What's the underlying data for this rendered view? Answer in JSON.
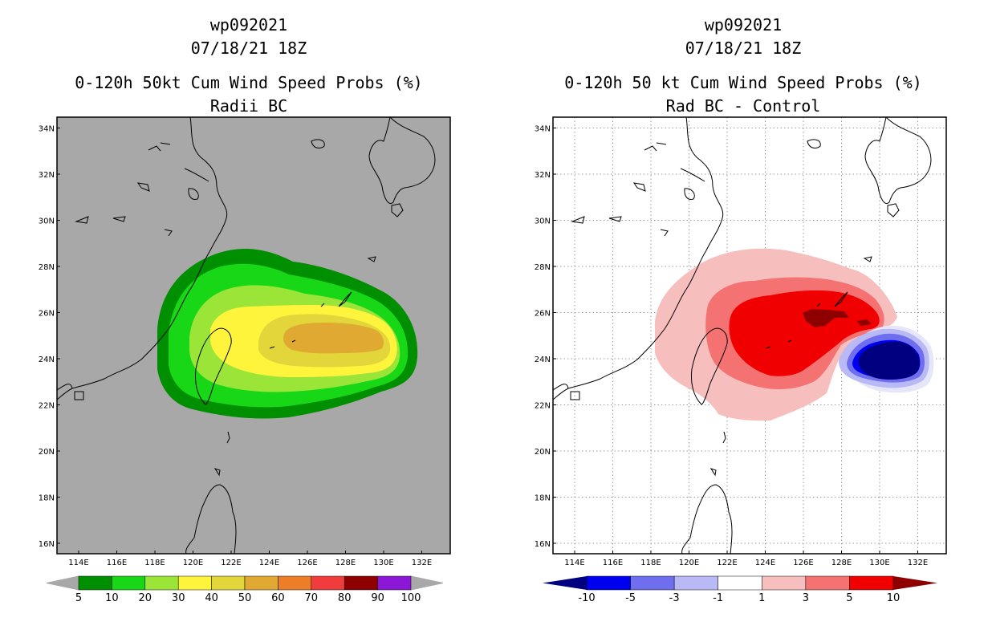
{
  "panels": [
    {
      "id": "left",
      "title_line1": "wp092021",
      "title_line2": "07/18/21 18Z",
      "title_line3": "0-120h 50kt Cum Wind Speed Probs (%)",
      "title_line4": "Radii BC",
      "background": "#a8a8a8",
      "grid": false,
      "colorbar": {
        "colors": [
          "#008f00",
          "#17d717",
          "#9be539",
          "#fff43c",
          "#e2d63a",
          "#e0aa32",
          "#ee7d28",
          "#f03c3c",
          "#8e0000",
          "#8c17d7"
        ],
        "labels": [
          "5",
          "10",
          "20",
          "30",
          "40",
          "50",
          "60",
          "70",
          "80",
          "90",
          "100"
        ],
        "low_arrow": "#a8a8a8",
        "high_arrow": "#a8a8a8"
      }
    },
    {
      "id": "right",
      "title_line1": "wp092021",
      "title_line2": "07/18/21 18Z",
      "title_line3": "0-120h 50 kt Cum Wind Speed Probs (%)",
      "title_line4": "Rad BC - Control",
      "background": "#ffffff",
      "grid": true,
      "colorbar": {
        "colors": [
          "#0000f0",
          "#6e6eee",
          "#b9b9f5",
          "#ffffff",
          "#f7bebe",
          "#f57272",
          "#f00000"
        ],
        "labels": [
          "-10",
          "-5",
          "-3",
          "-1",
          "1",
          "3",
          "5",
          "10"
        ],
        "low_arrow": "#000080",
        "high_arrow": "#8e0000"
      }
    }
  ],
  "axes": {
    "lon_labels": [
      "114E",
      "116E",
      "118E",
      "120E",
      "122E",
      "124E",
      "126E",
      "128E",
      "130E",
      "132E"
    ],
    "lat_labels": [
      "16N",
      "18N",
      "20N",
      "22N",
      "24N",
      "26N",
      "28N",
      "30N",
      "32N",
      "34N"
    ]
  }
}
